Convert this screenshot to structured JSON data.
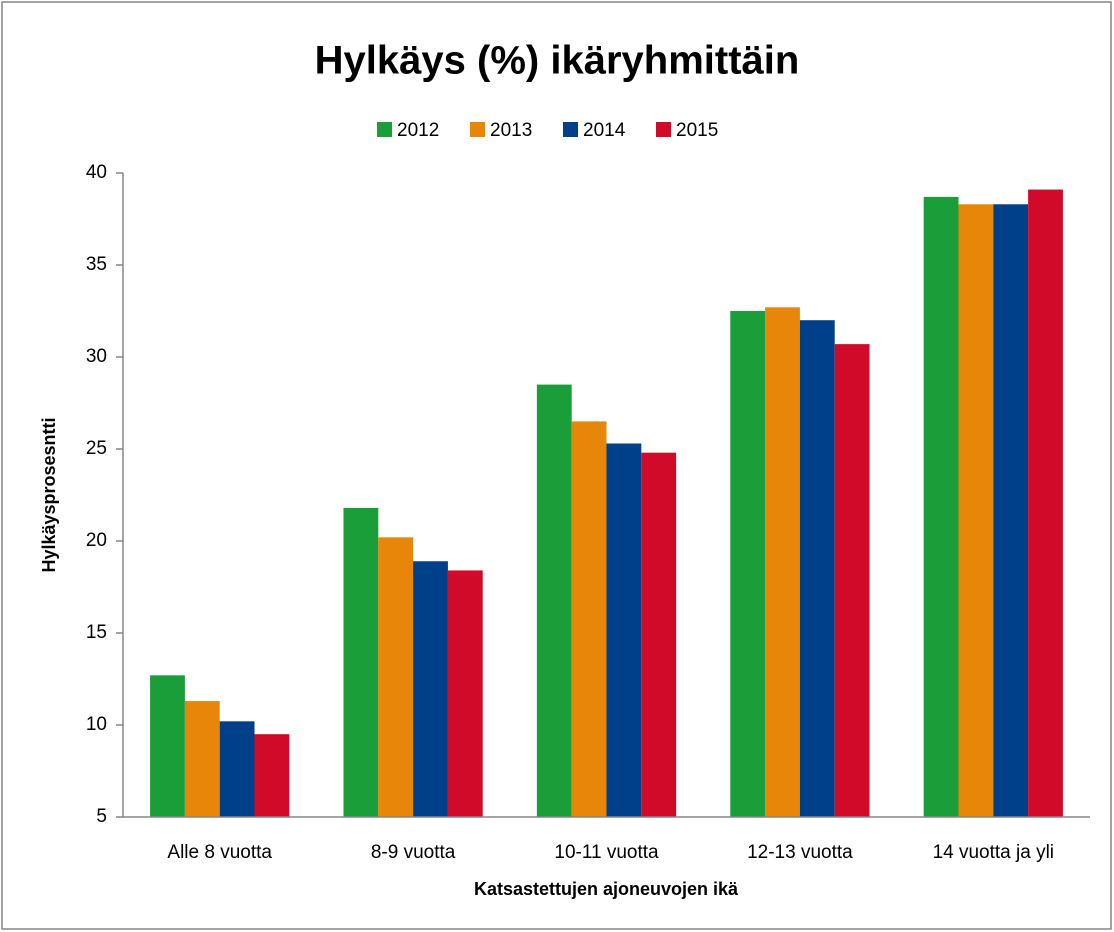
{
  "chart_data": {
    "type": "bar",
    "title": "Hylkäys (%) ikäryhmittäin",
    "x_label": "Katsastettujen ajoneuvojen ikä",
    "y_label": "Hylkäysprosesntti",
    "categories": [
      "Alle 8 vuotta",
      "8-9 vuotta",
      "10-11 vuotta",
      "12-13 vuotta",
      "14 vuotta ja yli"
    ],
    "series": [
      {
        "name": "2012",
        "color": "#1a9e3a",
        "values": [
          12.7,
          21.8,
          28.5,
          32.5,
          38.7
        ]
      },
      {
        "name": "2013",
        "color": "#e8860a",
        "values": [
          11.3,
          20.2,
          26.5,
          32.7,
          38.3
        ]
      },
      {
        "name": "2014",
        "color": "#003f8a",
        "values": [
          10.2,
          18.9,
          25.3,
          32.0,
          38.3
        ]
      },
      {
        "name": "2015",
        "color": "#d20a2a",
        "values": [
          9.5,
          18.4,
          24.8,
          30.7,
          39.1
        ]
      }
    ],
    "ylim": [
      5,
      40
    ],
    "yticks": [
      5,
      10,
      15,
      20,
      25,
      30,
      35,
      40
    ],
    "grid": false,
    "legend": "top"
  }
}
